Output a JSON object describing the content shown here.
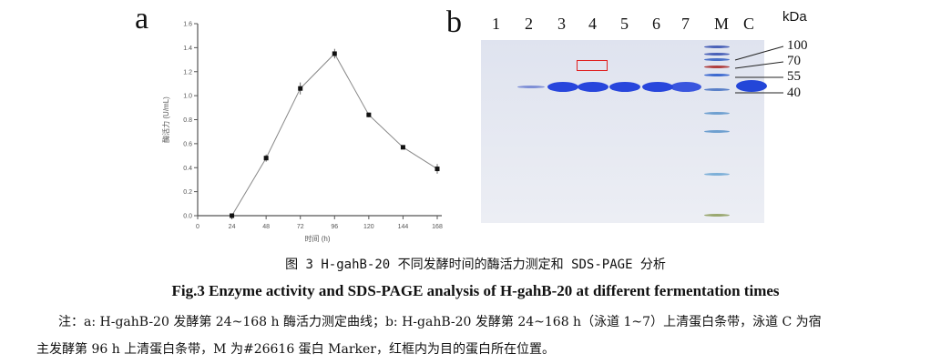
{
  "panel_a_label": "a",
  "panel_b_label": "b",
  "chart_data": {
    "type": "line",
    "xlabel": "时间 (h)",
    "ylabel": "酶活力 (U/mL)",
    "x": [
      24,
      48,
      72,
      96,
      120,
      144,
      168
    ],
    "y": [
      0.0,
      0.48,
      1.06,
      1.35,
      0.84,
      0.57,
      0.39
    ],
    "error": [
      0.0,
      0.03,
      0.05,
      0.04,
      0.02,
      0.015,
      0.04
    ],
    "xticks": [
      0,
      24,
      48,
      72,
      96,
      120,
      144,
      168
    ],
    "yticks": [
      "0.0",
      "0.2",
      "0.4",
      "0.6",
      "0.8",
      "1.0",
      "1.2",
      "1.4",
      "1.6"
    ],
    "xlim": [
      0,
      168
    ],
    "ylim": [
      0,
      1.6
    ],
    "line_color": "#888888",
    "marker": "square"
  },
  "gel": {
    "lanes": [
      "1",
      "2",
      "3",
      "4",
      "5",
      "6",
      "7",
      "M",
      "C"
    ],
    "unit": "kDa",
    "markers": [
      "100",
      "70",
      "55",
      "40"
    ],
    "highlight_color": "#e02020"
  },
  "caption": {
    "cn": "图 3 H-gahB-20 不同发酵时间的酶活力测定和 SDS-PAGE 分析",
    "en": "Fig.3 Enzyme activity and SDS-PAGE analysis of H-gahB-20 at different fermentation times",
    "note1": "注：a:  H-gahB-20 发酵第 24~168  h 酶活力测定曲线；b:  H-gahB-20 发酵第 24~168  h（泳道 1~7）上清蛋白条带，泳道 C 为宿",
    "note2": "主发酵第 96 h 上清蛋白条带，M 为#26616 蛋白 Marker，红框内为目的蛋白所在位置。"
  }
}
